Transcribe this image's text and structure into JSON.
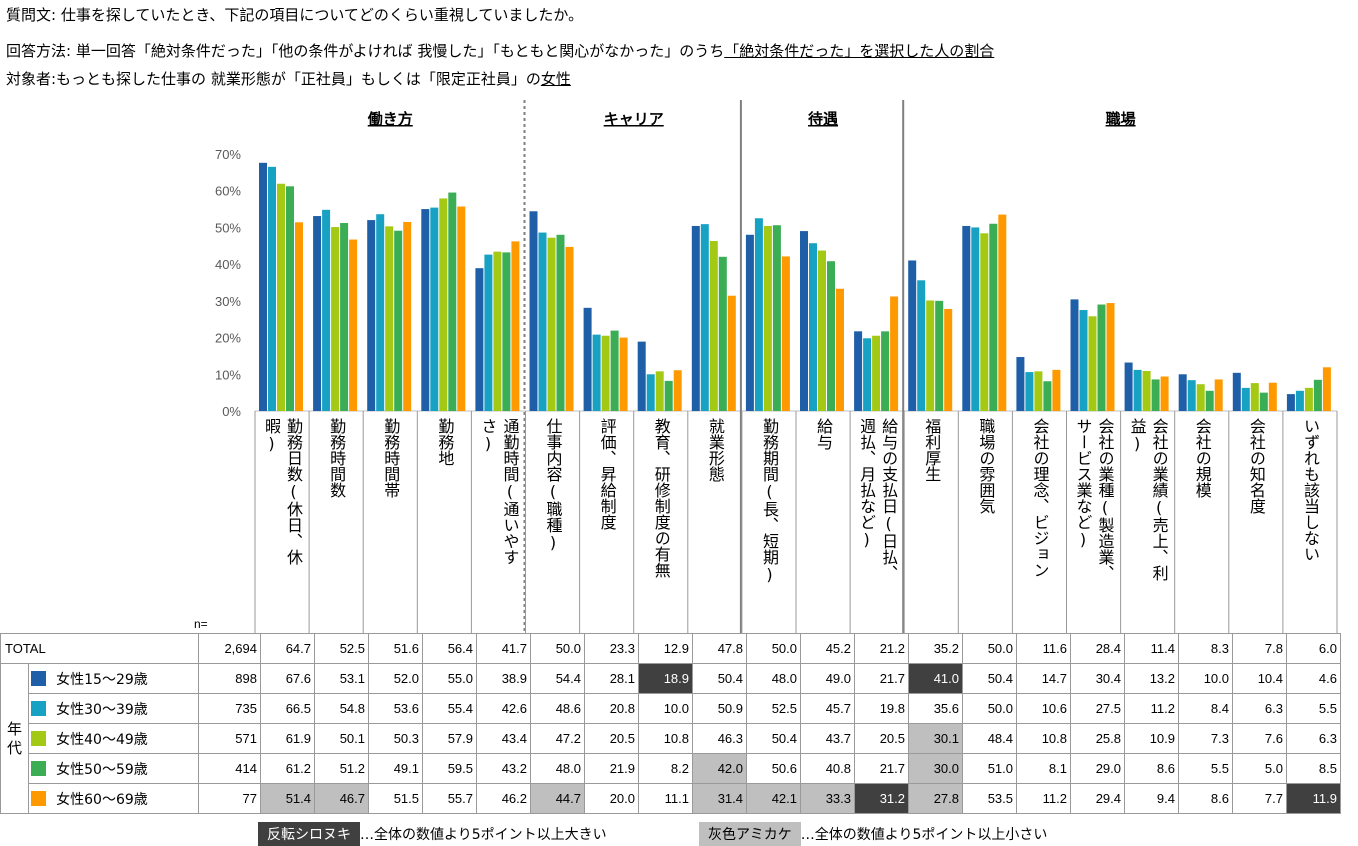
{
  "header": {
    "line1": "質問文: 仕事を探していたとき、下記の項目についてどのくらい重視していましたか。",
    "line2_prefix": "回答方法: 単一回答「絶対条件だった」「他の条件がよければ 我慢した」「もともと関心がなかった」のうち",
    "line2_underlined": "「絶対条件だった」を選択した人の割合",
    "line3_prefix": "対象者:もっとも探した仕事の 就業形態が「正社員」もしくは「限定正社員」の",
    "line3_underlined": "女性"
  },
  "chart_data": {
    "type": "bar",
    "ylim": [
      0,
      70
    ],
    "yticks": [
      "0%",
      "10%",
      "20%",
      "30%",
      "40%",
      "50%",
      "60%",
      "70%"
    ],
    "groups": [
      {
        "label": "働き方",
        "first": 0,
        "last": 4
      },
      {
        "label": "キャリア",
        "first": 5,
        "last": 8
      },
      {
        "label": "待遇",
        "first": 9,
        "last": 11
      },
      {
        "label": "職場",
        "first": 12,
        "last": 19
      }
    ],
    "categories": [
      "勤務日数(休日、休暇)",
      "勤務時間数",
      "勤務時間帯",
      "勤務地",
      "通勤時間(通いやすさ)",
      "仕事内容(職種)",
      "評価、昇給制度",
      "教育、研修制度の有無",
      "就業形態",
      "勤務期間(長、短期)",
      "給与",
      "給与の支払日(日払、週払、月払など)",
      "福利厚生",
      "職場の雰囲気",
      "会社の理念、ビジョン",
      "会社の業種(製造業、サービス業など)",
      "会社の業績(売上、利益)",
      "会社の規模",
      "会社の知名度",
      "いずれも該当しない"
    ],
    "category_columns": [
      [
        "暇)",
        "勤務日数(休日、休"
      ],
      [
        "勤務時間数"
      ],
      [
        "勤務時間帯"
      ],
      [
        "勤務地"
      ],
      [
        "さ)",
        "通勤時間(通いやす"
      ],
      [
        "仕事内容(職種)"
      ],
      [
        "評価、昇給制度"
      ],
      [
        "教育、研修制度の有無"
      ],
      [
        "就業形態"
      ],
      [
        "勤務期間(長、短期)"
      ],
      [
        "給与"
      ],
      [
        "週払、月払など)",
        "給与の支払日(日払、"
      ],
      [
        "福利厚生"
      ],
      [
        "職場の雰囲気"
      ],
      [
        "会社の理念、ビジョン"
      ],
      [
        "サービス業など)",
        "会社の業種(製造業、"
      ],
      [
        "益)",
        "会社の業績(売上、利"
      ],
      [
        "会社の規模"
      ],
      [
        "会社の知名度"
      ],
      [
        "いずれも該当しない"
      ]
    ],
    "series": [
      {
        "name": "女性15～29歳",
        "color": "#1f5fa8",
        "n": "898",
        "values": [
          67.6,
          53.1,
          52.0,
          55.0,
          38.9,
          54.4,
          28.1,
          18.9,
          50.4,
          48.0,
          49.0,
          21.7,
          41.0,
          50.4,
          14.7,
          30.4,
          13.2,
          10.0,
          10.4,
          4.6
        ]
      },
      {
        "name": "女性30～39歳",
        "color": "#17a2c4",
        "n": "735",
        "values": [
          66.5,
          54.8,
          53.6,
          55.4,
          42.6,
          48.6,
          20.8,
          10.0,
          50.9,
          52.5,
          45.7,
          19.8,
          35.6,
          50.0,
          10.6,
          27.5,
          11.2,
          8.4,
          6.3,
          5.5
        ]
      },
      {
        "name": "女性40～49歳",
        "color": "#a3c914",
        "n": "571",
        "values": [
          61.9,
          50.1,
          50.3,
          57.9,
          43.4,
          47.2,
          20.5,
          10.8,
          46.3,
          50.4,
          43.7,
          20.5,
          30.1,
          48.4,
          10.8,
          25.8,
          10.9,
          7.3,
          7.6,
          6.3
        ]
      },
      {
        "name": "女性50～59歳",
        "color": "#3aad55",
        "n": "414",
        "values": [
          61.2,
          51.2,
          49.1,
          59.5,
          43.2,
          48.0,
          21.9,
          8.2,
          42.0,
          50.6,
          40.8,
          21.7,
          30.0,
          51.0,
          8.1,
          29.0,
          8.6,
          5.5,
          5.0,
          8.5
        ]
      },
      {
        "name": "女性60～69歳",
        "color": "#ff9900",
        "n": "77",
        "values": [
          51.4,
          46.7,
          51.5,
          55.7,
          46.2,
          44.7,
          20.0,
          11.1,
          31.4,
          42.1,
          33.3,
          31.2,
          27.8,
          53.5,
          11.2,
          29.4,
          9.4,
          8.6,
          7.7,
          11.9
        ]
      }
    ],
    "total": {
      "label": "TOTAL",
      "n": "2,694",
      "values": [
        64.7,
        52.5,
        51.6,
        56.4,
        41.7,
        50.0,
        23.3,
        12.9,
        47.8,
        50.0,
        45.2,
        21.2,
        35.2,
        50.0,
        11.6,
        28.4,
        11.4,
        8.3,
        7.8,
        6.0
      ]
    }
  },
  "table": {
    "n_label": "n=",
    "row_group_label": "年代"
  },
  "legend": {
    "high_box": "反転シロヌキ",
    "high_text": "…全体の数値より5ポイント以上大きい",
    "low_box": "灰色アミカケ",
    "low_text": "…全体の数値より5ポイント以上小さい"
  },
  "colors": {
    "highlight_high": "#404040",
    "highlight_low": "#bfbfbf",
    "divider": "#7f7f7f"
  }
}
